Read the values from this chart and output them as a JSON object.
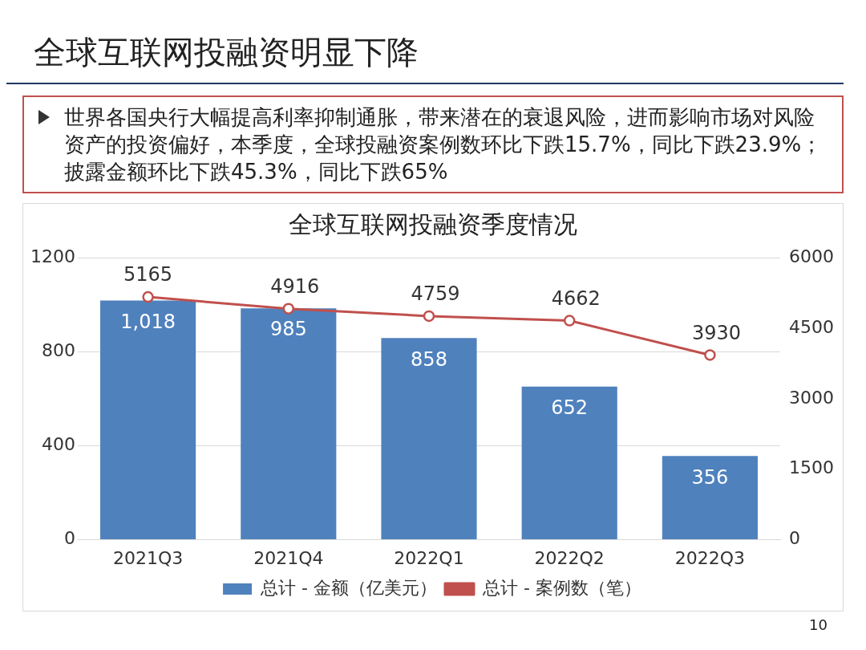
{
  "chart_data": {
    "type": "bar",
    "title": "全球互联网投融资明显下降",
    "subtitle": "世界各国央行大幅提高利率抑制通胀，带来潜在的衰退风险，进而影响市场对风险资产的投资偏好，本季度，全球投融资案例数环比下跌15.7%，同比下跌23.9%；披露金额环比下跌45.3%，同比下跌65%",
    "annotations": [
      "全球互联网投融资季度情况",
      "10"
    ],
    "categories": [
      "2021Q3",
      "2021Q4",
      "2022Q1",
      "2022Q2",
      "2022Q3"
    ],
    "series": [
      {
        "name": "总计 - 金额（亿美元）",
        "color": "#4f81bd",
        "values": [
          1018,
          985,
          858,
          652,
          356
        ],
        "value_labels": [
          "1,018",
          "985",
          "858",
          "652",
          "356"
        ]
      },
      {
        "name": "总计 - 案例数（笔）",
        "type": "line",
        "axis": "y2",
        "color": "#c0504d",
        "marker": "circle",
        "values": [
          5165,
          4916,
          4759,
          4662,
          3930
        ],
        "value_labels": [
          "5165",
          "4916",
          "4759",
          "4662",
          "3930"
        ]
      }
    ],
    "ylim": [
      0,
      1200
    ],
    "yticks": [
      0,
      400,
      800,
      1200
    ],
    "y2lim": [
      0,
      6000
    ],
    "y2ticks": [
      0,
      1500,
      3000,
      4500,
      6000
    ],
    "grid": "y",
    "legend": "bottom"
  }
}
